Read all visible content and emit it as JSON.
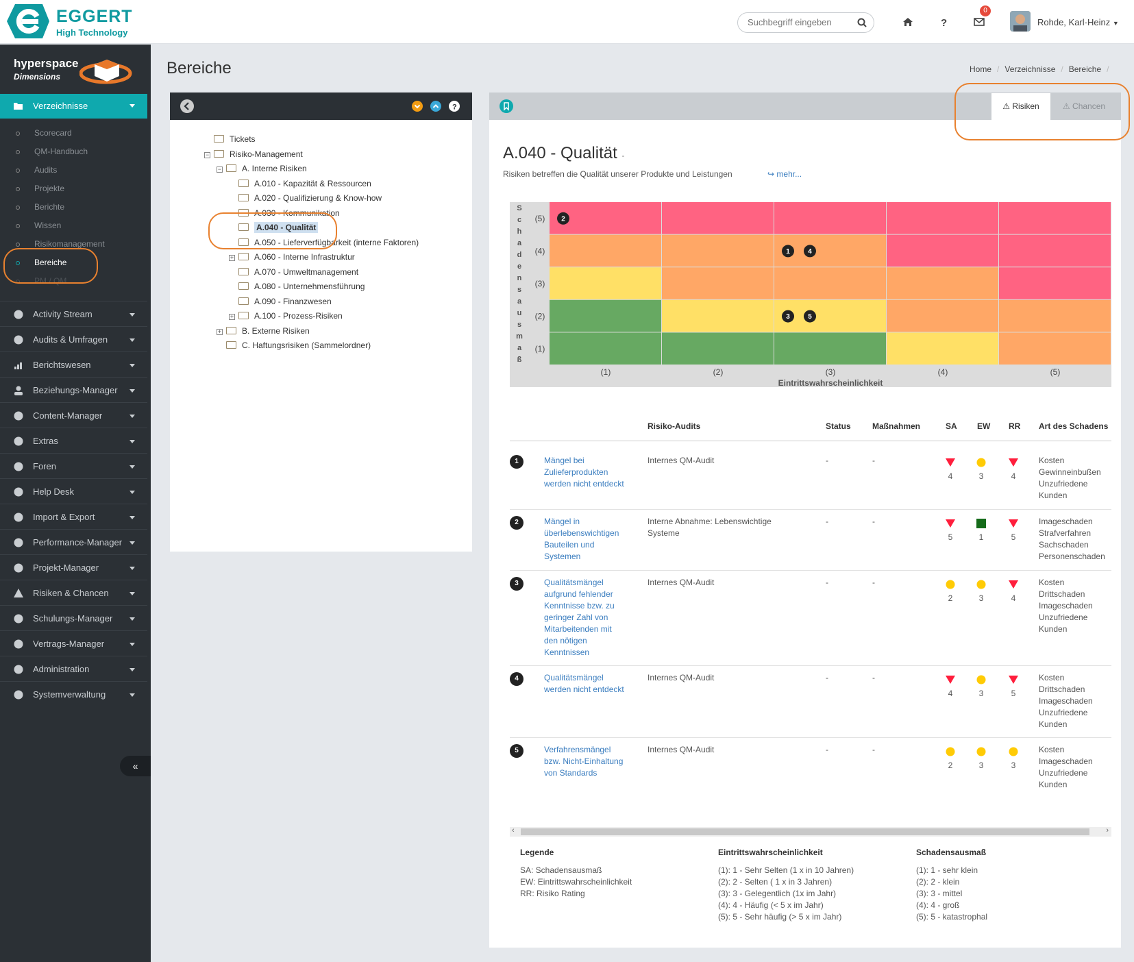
{
  "brand": {
    "name": "EGGERT",
    "tagline": "High Technology",
    "product": "hyperspace",
    "product_sub": "Dimensions",
    "accent": "#0fa9ae"
  },
  "header": {
    "search_placeholder": "Suchbegriff eingeben",
    "mail_count": "0",
    "user": "Rohde, Karl-Heinz"
  },
  "sidebar": {
    "active": "Verzeichnisse",
    "subitems": [
      "Scorecard",
      "QM-Handbuch",
      "Audits",
      "Projekte",
      "Berichte",
      "Wissen",
      "Risikomanagement",
      "Bereiche",
      "PM / QM"
    ],
    "items": [
      "Activity Stream",
      "Audits & Umfragen",
      "Berichtswesen",
      "Beziehungs-Manager",
      "Content-Manager",
      "Extras",
      "Foren",
      "Help Desk",
      "Import & Export",
      "Performance-Manager",
      "Projekt-Manager",
      "Risiken & Chancen",
      "Schulungs-Manager",
      "Vertrags-Manager",
      "Administration",
      "Systemverwaltung"
    ],
    "collapse": "«"
  },
  "page": {
    "title": "Bereiche",
    "breadcrumb": [
      "Home",
      "Verzeichnisse",
      "Bereiche"
    ]
  },
  "tree": {
    "nodes": [
      {
        "label": "Tickets",
        "level": 0,
        "pm": "",
        "open": false
      },
      {
        "label": "Risiko-Management",
        "level": 0,
        "pm": "−",
        "open": true
      },
      {
        "label": "A. Interne Risiken",
        "level": 1,
        "pm": "−",
        "open": true
      },
      {
        "label": "A.010 - Kapazität & Ressourcen",
        "level": 2,
        "pm": "",
        "open": false
      },
      {
        "label": "A.020 - Qualifizierung & Know-how",
        "level": 2,
        "pm": "",
        "open": false
      },
      {
        "label": "A.030 - Kommunikation",
        "level": 2,
        "pm": "",
        "open": false
      },
      {
        "label": "A.040 - Qualität",
        "level": 2,
        "pm": "",
        "open": false,
        "selected": true
      },
      {
        "label": "A.050 - Lieferverfügbarkeit (interne Faktoren)",
        "level": 2,
        "pm": "",
        "open": false
      },
      {
        "label": "A.060 - Interne Infrastruktur",
        "level": 2,
        "pm": "+",
        "open": false
      },
      {
        "label": "A.070 - Umweltmanagement",
        "level": 2,
        "pm": "",
        "open": false
      },
      {
        "label": "A.080 - Unternehmensführung",
        "level": 2,
        "pm": "",
        "open": false
      },
      {
        "label": "A.090 - Finanzwesen",
        "level": 2,
        "pm": "",
        "open": false
      },
      {
        "label": "A.100 - Prozess-Risiken",
        "level": 2,
        "pm": "+",
        "open": false
      },
      {
        "label": "B. Externe Risiken",
        "level": 1,
        "pm": "+",
        "open": false
      },
      {
        "label": "C. Haftungsrisiken (Sammelordner)",
        "level": 1,
        "pm": "",
        "open": false
      }
    ]
  },
  "tabs": {
    "risiken": "Risiken",
    "chancen": "Chancen"
  },
  "area": {
    "title": "A.040 - Qualität",
    "title_suffix": "-",
    "description": "Risiken betreffen die Qualität unserer Produkte und Leistungen",
    "more": "mehr..."
  },
  "matrix": {
    "y_label": "Schadensausmaß",
    "y_ticks": [
      "(5)",
      "(4)",
      "(3)",
      "(2)",
      "(1)"
    ],
    "x_ticks": [
      "(1)",
      "(2)",
      "(3)",
      "(4)",
      "(5)"
    ],
    "x_label": "Eintrittswahrscheinlichkeit",
    "colors": {
      "red": "#ff6382",
      "orange": "#ffa766",
      "yellow": "#ffe066",
      "green": "#67a962"
    },
    "grid": [
      [
        "red",
        "red",
        "red",
        "red",
        "red"
      ],
      [
        "orange",
        "orange",
        "orange",
        "red",
        "red"
      ],
      [
        "yellow",
        "orange",
        "orange",
        "orange",
        "red"
      ],
      [
        "green",
        "yellow",
        "yellow",
        "orange",
        "orange"
      ],
      [
        "green",
        "green",
        "green",
        "yellow",
        "orange"
      ]
    ],
    "markers": [
      {
        "n": "2",
        "sa": 5,
        "ew": 1
      },
      {
        "n": "1",
        "sa": 4,
        "ew": 3
      },
      {
        "n": "4",
        "sa": 4,
        "ew": 3
      },
      {
        "n": "3",
        "sa": 2,
        "ew": 3
      },
      {
        "n": "5",
        "sa": 2,
        "ew": 3
      }
    ]
  },
  "table": {
    "headers": {
      "audits": "Risiko-Audits",
      "status": "Status",
      "massnahmen": "Maßnahmen",
      "sa": "SA",
      "ew": "EW",
      "rr": "RR",
      "art": "Art des Schadens"
    },
    "rows": [
      {
        "n": "1",
        "name": "Mängel bei Zulieferprodukten werden nicht entdeckt",
        "audit": "Internes QM-Audit",
        "status": "-",
        "mass": "-",
        "sa": "4",
        "ew": "3",
        "rr": "4",
        "sa_t": "tri",
        "ew_t": "dot",
        "rr_t": "tri",
        "art": "Kosten Gewinneinbußen Unzufriedene Kunden"
      },
      {
        "n": "2",
        "name": "Mängel in überlebenswichtigen Bauteilen und Systemen",
        "audit": "Interne Abnahme: Lebenswichtige Systeme",
        "status": "-",
        "mass": "-",
        "sa": "5",
        "ew": "1",
        "rr": "5",
        "sa_t": "tri",
        "ew_t": "sq",
        "rr_t": "tri",
        "art": "Imageschaden Strafverfahren Sachschaden Personenschaden"
      },
      {
        "n": "3",
        "name": "Qualitätsmängel aufgrund fehlender Kenntnisse bzw. zu geringer Zahl von Mitarbeitenden mit den nötigen Kenntnissen",
        "audit": "Internes QM-Audit",
        "status": "-",
        "mass": "-",
        "sa": "2",
        "ew": "3",
        "rr": "4",
        "sa_t": "dot",
        "ew_t": "dot",
        "rr_t": "tri",
        "art": "Kosten Drittschaden Imageschaden Unzufriedene Kunden"
      },
      {
        "n": "4",
        "name": "Qualitätsmängel werden nicht entdeckt",
        "audit": "Internes QM-Audit",
        "status": "-",
        "mass": "-",
        "sa": "4",
        "ew": "3",
        "rr": "5",
        "sa_t": "tri",
        "ew_t": "dot",
        "rr_t": "tri",
        "art": "Kosten Drittschaden Imageschaden Unzufriedene Kunden"
      },
      {
        "n": "5",
        "name": "Verfahrensmängel bzw. Nicht-Einhaltung von Standards",
        "audit": "Internes QM-Audit",
        "status": "-",
        "mass": "-",
        "sa": "2",
        "ew": "3",
        "rr": "3",
        "sa_t": "dot",
        "ew_t": "dot",
        "rr_t": "dot",
        "art": "Kosten Imageschaden Unzufriedene Kunden"
      }
    ]
  },
  "legend": {
    "title": "Legende",
    "items": [
      "SA: Schadensausmaß",
      "EW: Eintrittswahrscheinlichkeit",
      "RR: Risiko Rating"
    ],
    "ew_title": "Eintrittswahrscheinlichkeit",
    "ew_items": [
      "(1): 1 - Sehr Selten (1 x in 10 Jahren)",
      "(2): 2 - Selten ( 1 x in 3 Jahren)",
      "(3): 3 - Gelegentlich (1x im Jahr)",
      "(4): 4 - Häufig (< 5 x im Jahr)",
      "(5): 5 - Sehr häufig (> 5 x im Jahr)"
    ],
    "sa_title": "Schadensausmaß",
    "sa_items": [
      "(1): 1 - sehr klein",
      "(2): 2 - klein",
      "(3): 3 - mittel",
      "(4): 4 - groß",
      "(5): 5 - katastrophal"
    ]
  }
}
